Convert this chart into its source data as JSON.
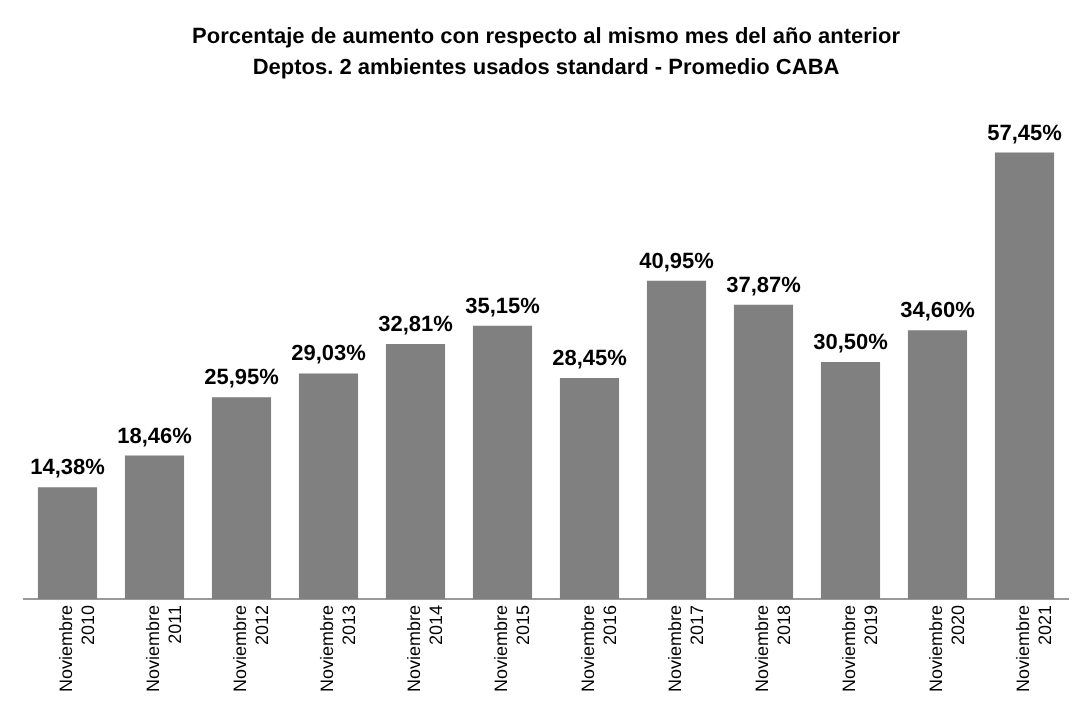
{
  "chart_data": {
    "type": "bar",
    "title": "Porcentaje de aumento con respecto al mismo mes del año anterior",
    "subtitle": "Deptos. 2 ambientes usados standard - Promedio CABA",
    "categories": [
      "Noviembre 2010",
      "Noviembre 2011",
      "Noviembre 2012",
      "Noviembre 2013",
      "Noviembre 2014",
      "Noviembre 2015",
      "Noviembre 2016",
      "Noviembre 2017",
      "Noviembre 2018",
      "Noviembre 2019",
      "Noviembre 2020",
      "Noviembre 2021"
    ],
    "values": [
      14.38,
      18.46,
      25.95,
      29.03,
      32.81,
      35.15,
      28.45,
      40.95,
      37.87,
      30.5,
      34.6,
      57.45
    ],
    "value_labels": [
      "14,38%",
      "18,46%",
      "25,95%",
      "29,03%",
      "32,81%",
      "35,15%",
      "28,45%",
      "40,95%",
      "37,87%",
      "30,50%",
      "34,60%",
      "57,45%"
    ],
    "color": "#808080",
    "grid": false,
    "legend": false
  }
}
